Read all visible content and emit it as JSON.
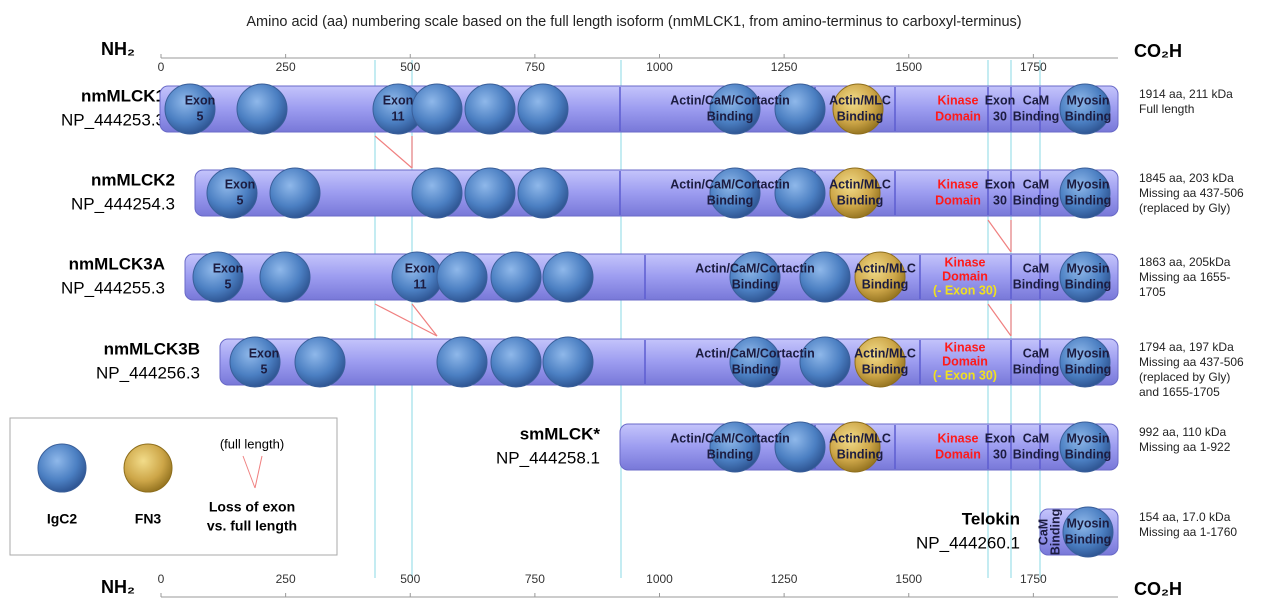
{
  "caption": "Amino acid (aa) numbering scale based on the full length isoform (nmMLCK1, from amino-terminus to carboxyl-terminus)",
  "axis": {
    "n_term": "NH₂",
    "c_term": "CO₂H",
    "ticks": [
      0,
      250,
      500,
      750,
      1000,
      1250,
      1500,
      1750
    ]
  },
  "isoforms": [
    {
      "name": "nmMLCK1",
      "accession": "NP_444253.3",
      "info": [
        "1914 aa, 211 kDa",
        "Full length"
      ],
      "labels": [
        [
          "Exon",
          "5"
        ],
        [
          "Exon",
          "11"
        ],
        [
          "Actin/CaM/Cortactin",
          "Binding"
        ],
        [
          "Actin/MLC",
          "Binding"
        ],
        [
          "Kinase",
          "Domain"
        ],
        [
          "Exon",
          "30"
        ],
        [
          "CaM",
          "Binding"
        ],
        [
          "Myosin",
          "Binding"
        ]
      ]
    },
    {
      "name": "nmMLCK2",
      "accession": "NP_444254.3",
      "info": [
        "1845 aa, 203 kDa",
        "Missing aa 437-506",
        "(replaced by Gly)"
      ],
      "labels": [
        [
          "Exon",
          "5"
        ],
        [
          "Actin/CaM/Cortactin",
          "Binding"
        ],
        [
          "Actin/MLC",
          "Binding"
        ],
        [
          "Kinase",
          "Domain"
        ],
        [
          "Exon",
          "30"
        ],
        [
          "CaM",
          "Binding"
        ],
        [
          "Myosin",
          "Binding"
        ]
      ]
    },
    {
      "name": "nmMLCK3A",
      "accession": "NP_444255.3",
      "info": [
        "1863 aa, 205kDa",
        "Missing aa 1655-",
        "1705"
      ],
      "labels": [
        [
          "Exon",
          "5"
        ],
        [
          "Exon",
          "11"
        ],
        [
          "Actin/CaM/Cortactin",
          "Binding"
        ],
        [
          "Actin/MLC",
          "Binding"
        ],
        [
          "Kinase",
          "Domain",
          "(- Exon 30)"
        ],
        [
          "CaM",
          "Binding"
        ],
        [
          "Myosin",
          "Binding"
        ]
      ]
    },
    {
      "name": "nmMLCK3B",
      "accession": "NP_444256.3",
      "info": [
        "1794 aa, 197 kDa",
        "Missing aa 437-506",
        "(replaced by Gly)",
        "and 1655-1705"
      ],
      "labels": [
        [
          "Exon",
          "5"
        ],
        [
          "Actin/CaM/Cortactin",
          "Binding"
        ],
        [
          "Actin/MLC",
          "Binding"
        ],
        [
          "Kinase",
          "Domain",
          "(- Exon 30)"
        ],
        [
          "CaM",
          "Binding"
        ],
        [
          "Myosin",
          "Binding"
        ]
      ]
    },
    {
      "name": "smMLCK*",
      "accession": "NP_444258.1",
      "info": [
        "992 aa, 110 kDa",
        "Missing aa 1-922"
      ],
      "labels": [
        [
          "Actin/CaM/Cortactin",
          "Binding"
        ],
        [
          "Actin/MLC",
          "Binding"
        ],
        [
          "Kinase",
          "Domain"
        ],
        [
          "Exon",
          "30"
        ],
        [
          "CaM",
          "Binding"
        ],
        [
          "Myosin",
          "Binding"
        ]
      ]
    },
    {
      "name": "Telokin",
      "accession": "NP_444260.1",
      "info": [
        "154 aa, 17.0 kDa",
        "Missing aa 1-1760"
      ],
      "labels": [
        [
          "CaM",
          "Binding"
        ],
        [
          "Myosin",
          "Binding"
        ]
      ]
    }
  ],
  "legend": {
    "igc2": "IgC2",
    "fn3": "FN3",
    "full_length": "(full length)",
    "loss": [
      "Loss of exon",
      "vs. full length"
    ]
  }
}
